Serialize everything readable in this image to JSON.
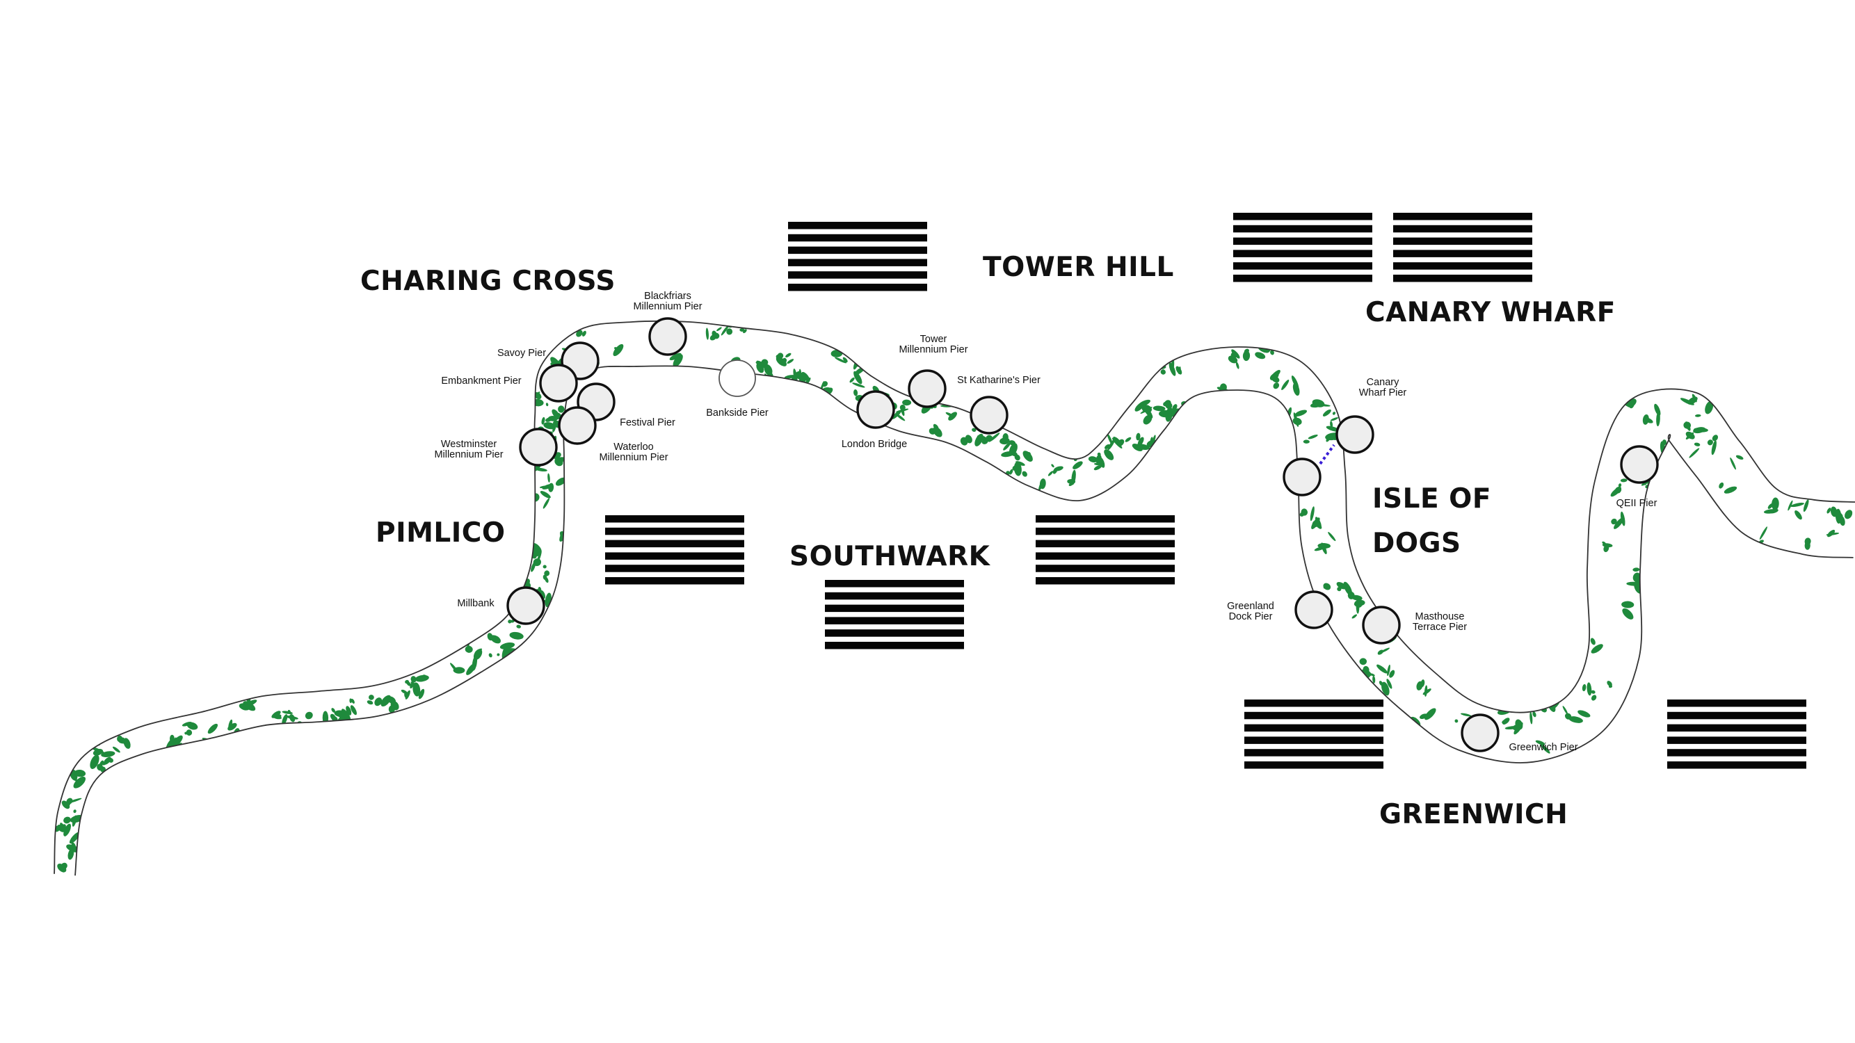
{
  "districts": [
    {
      "id": "charing-cross",
      "label": "CHARING CROSS"
    },
    {
      "id": "tower-hill",
      "label": "TOWER HILL"
    },
    {
      "id": "canary-wharf",
      "label": "CANARY WHARF"
    },
    {
      "id": "pimlico",
      "label": "PIMLICO"
    },
    {
      "id": "southwark",
      "label": "SOUTHWARK"
    },
    {
      "id": "isle-of-dogs-1",
      "label": "ISLE OF"
    },
    {
      "id": "isle-of-dogs-2",
      "label": "DOGS"
    },
    {
      "id": "greenwich",
      "label": "GREENWICH"
    }
  ],
  "piers": {
    "blackfriars": [
      "Blackfriars",
      "Millennium Pier"
    ],
    "savoy": [
      "Savoy Pier"
    ],
    "embankment": [
      "Embankment Pier"
    ],
    "festival": [
      "Festival Pier"
    ],
    "westminster": [
      "Westminster",
      "Millennium Pier"
    ],
    "waterloo": [
      "Waterloo",
      "Millennium Pier"
    ],
    "bankside": [
      "Bankside Pier"
    ],
    "tower": [
      "Tower",
      "Millennium Pier"
    ],
    "st_katharines": [
      "St Katharine's Pier"
    ],
    "london_bridge": [
      "London Bridge"
    ],
    "canary_wharf_pier": [
      "Canary",
      "Wharf Pier"
    ],
    "qeii": [
      "QEII Pier"
    ],
    "millbank": [
      "Millbank"
    ],
    "greenland": [
      "Greenland",
      "Dock Pier"
    ],
    "masthouse": [
      "Masthouse",
      "Terrace Pier"
    ],
    "greenwich_pier": [
      "Greenwich Pier"
    ]
  },
  "colors": {
    "river_pattern": "#1f8a3c",
    "ferry_link": "#3a1fd6",
    "stripes": "#050505"
  }
}
